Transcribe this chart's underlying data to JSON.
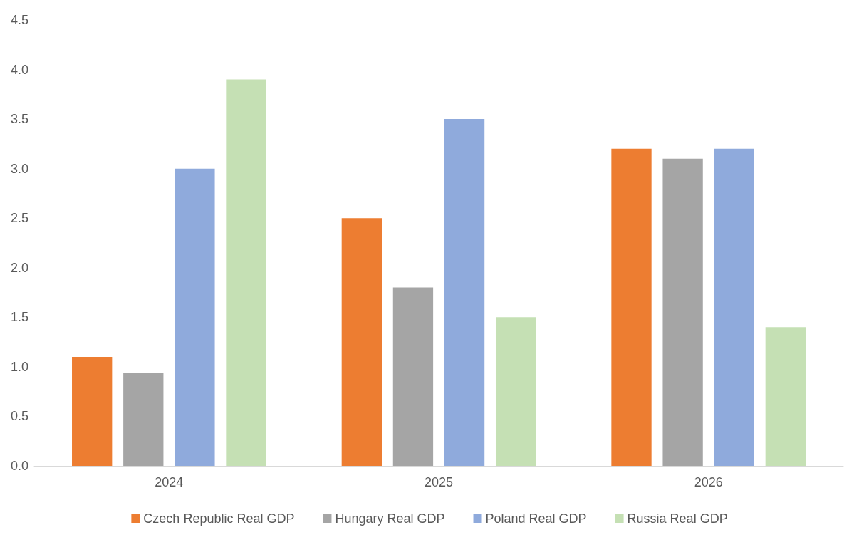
{
  "chart_data": {
    "type": "bar",
    "categories": [
      "2024",
      "2025",
      "2026"
    ],
    "series": [
      {
        "name": "Czech Republic Real GDP",
        "color": "#ed7d31",
        "values": [
          1.1,
          2.5,
          3.2
        ]
      },
      {
        "name": "Hungary Real GDP",
        "color": "#a5a5a5",
        "values": [
          0.94,
          1.8,
          3.1
        ]
      },
      {
        "name": "Poland Real GDP",
        "color": "#8faadc",
        "values": [
          3.0,
          3.5,
          3.2
        ]
      },
      {
        "name": "Russia Real GDP",
        "color": "#c5e0b4",
        "values": [
          3.9,
          1.5,
          1.4
        ]
      }
    ],
    "ylim": [
      0,
      4.5
    ],
    "yticks": [
      {
        "value": 0,
        "label": "0.0"
      },
      {
        "value": 0.5,
        "label": "0.5"
      },
      {
        "value": 1,
        "label": "1.0"
      },
      {
        "value": 1.5,
        "label": "1.5"
      },
      {
        "value": 2,
        "label": "2.0"
      },
      {
        "value": 2.5,
        "label": "2.5"
      },
      {
        "value": 3,
        "label": "3.0"
      },
      {
        "value": 3.5,
        "label": "3.5"
      },
      {
        "value": 4,
        "label": "4.0"
      },
      {
        "value": 4.5,
        "label": "4.5"
      }
    ],
    "grid": false,
    "legend": "bottom"
  }
}
